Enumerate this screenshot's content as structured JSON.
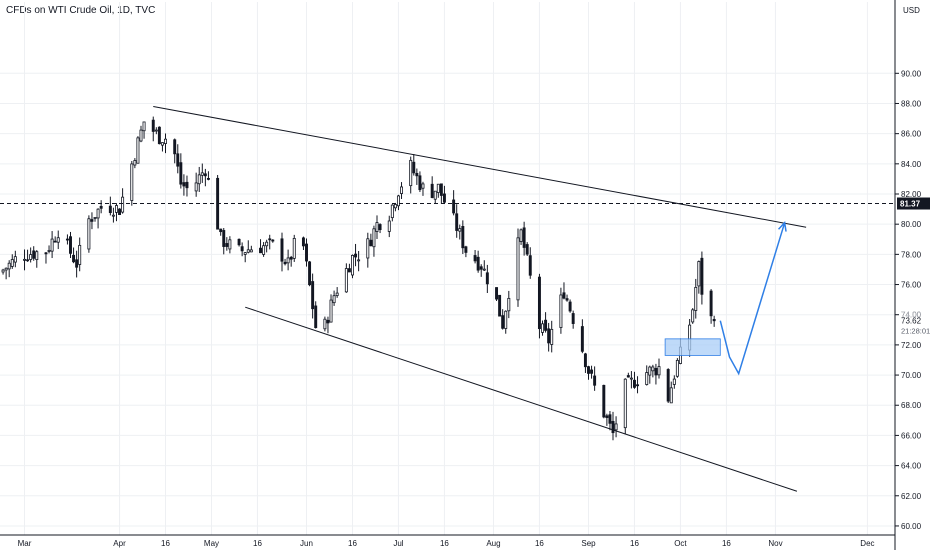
{
  "header": {
    "title": "CFDs on WTI Crude Oil, 1D, TVC",
    "currency": "USD"
  },
  "colors": {
    "bg": "#ffffff",
    "grid": "#eef0f3",
    "axis": "#131722",
    "text": "#131722",
    "candle_up": "#ffffff",
    "candle_down": "#131722",
    "projection": "#2f7fe6",
    "zone_fill": "#a9cdf7",
    "zone_stroke": "#2f7fe6",
    "level_tag_bg": "#131722"
  },
  "chart_data": {
    "type": "candlestick",
    "title": "CFDs on WTI Crude Oil, 1D, TVC",
    "y_unit": "USD",
    "ylim": [
      59.4,
      93.4
    ],
    "xlim": [
      "2021-02-21",
      "2021-12-10"
    ],
    "grid": true,
    "y_ticks": [
      "60.00",
      "62.00",
      "64.00",
      "66.00",
      "68.00",
      "70.00",
      "72.00",
      "74.00",
      "76.00",
      "78.00",
      "80.00",
      "82.00",
      "84.00",
      "86.00",
      "88.00",
      "90.00"
    ],
    "x_ticks": [
      {
        "label": "Mar",
        "date": "2021-03-01"
      },
      {
        "label": "Apr",
        "date": "2021-04-01"
      },
      {
        "label": "16",
        "date": "2021-04-16"
      },
      {
        "label": "May",
        "date": "2021-05-01"
      },
      {
        "label": "16",
        "date": "2021-05-16"
      },
      {
        "label": "Jun",
        "date": "2021-06-01"
      },
      {
        "label": "16",
        "date": "2021-06-16"
      },
      {
        "label": "Jul",
        "date": "2021-07-01"
      },
      {
        "label": "16",
        "date": "2021-07-16"
      },
      {
        "label": "Aug",
        "date": "2021-08-01"
      },
      {
        "label": "16",
        "date": "2021-08-16"
      },
      {
        "label": "Sep",
        "date": "2021-09-01"
      },
      {
        "label": "16",
        "date": "2021-09-16"
      },
      {
        "label": "Oct",
        "date": "2021-10-01"
      },
      {
        "label": "16",
        "date": "2021-10-16"
      },
      {
        "label": "Nov",
        "date": "2021-11-01"
      },
      {
        "label": "Dec",
        "date": "2021-12-01"
      }
    ],
    "close_path": [
      [
        "2021-02-21",
        76.8
      ],
      [
        "2021-02-28",
        78.0
      ],
      [
        "2021-03-08",
        78.2
      ],
      [
        "2021-03-12",
        79.6
      ],
      [
        "2021-03-18",
        77.4
      ],
      [
        "2021-03-22",
        80.3
      ],
      [
        "2021-03-27",
        81.3
      ],
      [
        "2021-04-01",
        81.0
      ],
      [
        "2021-04-05",
        84.0
      ],
      [
        "2021-04-09",
        86.8
      ],
      [
        "2021-04-14",
        85.8
      ],
      [
        "2021-04-18",
        85.6
      ],
      [
        "2021-04-21",
        82.7
      ],
      [
        "2021-04-24",
        82.2
      ],
      [
        "2021-04-29",
        83.7
      ],
      [
        "2021-05-01",
        82.0
      ],
      [
        "2021-05-04",
        79.0
      ],
      [
        "2021-05-10",
        78.2
      ],
      [
        "2021-05-16",
        78.5
      ],
      [
        "2021-05-22",
        78.6
      ],
      [
        "2021-05-26",
        77.3
      ],
      [
        "2021-05-30",
        79.8
      ],
      [
        "2021-06-01",
        77.2
      ],
      [
        "2021-06-04",
        73.2
      ],
      [
        "2021-06-06",
        72.6
      ],
      [
        "2021-06-10",
        75.3
      ],
      [
        "2021-06-16",
        77.8
      ],
      [
        "2021-06-20",
        78.2
      ],
      [
        "2021-06-24",
        80.0
      ],
      [
        "2021-06-28",
        80.7
      ],
      [
        "2021-07-01",
        82.3
      ],
      [
        "2021-07-05",
        83.8
      ],
      [
        "2021-07-10",
        82.0
      ],
      [
        "2021-07-14",
        82.4
      ],
      [
        "2021-07-20",
        79.8
      ],
      [
        "2021-07-23",
        78.3
      ],
      [
        "2021-07-28",
        77.3
      ],
      [
        "2021-08-01",
        75.6
      ],
      [
        "2021-08-04",
        73.4
      ],
      [
        "2021-08-08",
        77.8
      ],
      [
        "2021-08-10",
        79.4
      ],
      [
        "2021-08-12",
        77.5
      ],
      [
        "2021-08-16",
        73.2
      ],
      [
        "2021-08-19",
        72.3
      ],
      [
        "2021-08-24",
        75.6
      ],
      [
        "2021-08-28",
        73.2
      ],
      [
        "2021-09-01",
        70.3
      ],
      [
        "2021-09-06",
        67.5
      ],
      [
        "2021-09-09",
        66.1
      ],
      [
        "2021-09-13",
        69.2
      ],
      [
        "2021-09-20",
        70.2
      ],
      [
        "2021-09-24",
        70.5
      ],
      [
        "2021-09-27",
        68.5
      ],
      [
        "2021-09-30",
        70.8
      ],
      [
        "2021-10-03",
        72.4
      ],
      [
        "2021-10-05",
        74.4
      ],
      [
        "2021-10-07",
        77.2
      ],
      [
        "2021-10-09",
        74.0
      ],
      [
        "2021-10-12",
        73.6
      ]
    ],
    "annotations": {
      "upper_trendline": [
        [
          "2021-04-12",
          87.8
        ],
        [
          "2021-11-11",
          79.8
        ]
      ],
      "lower_trendline": [
        [
          "2021-05-12",
          74.5
        ],
        [
          "2021-11-08",
          62.3
        ]
      ],
      "projection": [
        [
          "2021-10-14",
          73.6
        ],
        [
          "2021-10-17",
          71.2
        ],
        [
          "2021-10-20",
          70.1
        ],
        [
          "2021-11-04",
          80.1
        ]
      ],
      "demand_zone": {
        "from": "2021-09-26",
        "to": "2021-10-14",
        "y": [
          71.3,
          72.4
        ]
      },
      "horizontal_level": 81.37,
      "level_label": "81.37",
      "last_price": "73.62",
      "countdown": "21:28:01",
      "faded_price": "74.00"
    }
  }
}
